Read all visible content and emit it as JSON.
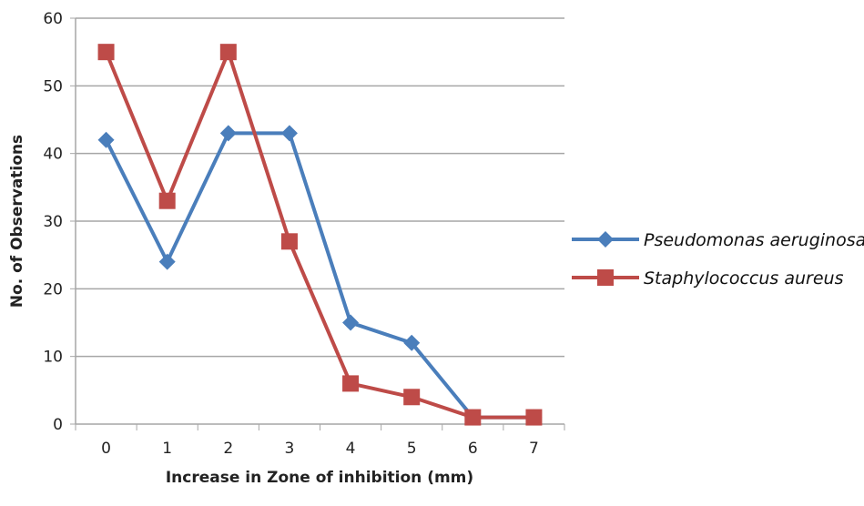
{
  "chart_data": {
    "type": "line",
    "title": "",
    "xlabel": "Increase in Zone of inhibition (mm)",
    "ylabel": "No. of Observations",
    "categories": [
      "0",
      "1",
      "2",
      "3",
      "4",
      "5",
      "6",
      "7"
    ],
    "ylim": [
      0,
      60
    ],
    "yticks": [
      "0",
      "10",
      "20",
      "30",
      "40",
      "50",
      "60"
    ],
    "grid": true,
    "legend": "right",
    "series": [
      {
        "name": "Pseudomonas aeruginosa",
        "color": "#4a7ebb",
        "marker": "diamond",
        "values": [
          42,
          24,
          43,
          43,
          15,
          12,
          1,
          1
        ]
      },
      {
        "name": "Staphylococcus aureus",
        "color": "#be4b48",
        "marker": "square",
        "values": [
          55,
          33,
          55,
          27,
          6,
          4,
          1,
          1
        ]
      }
    ]
  }
}
